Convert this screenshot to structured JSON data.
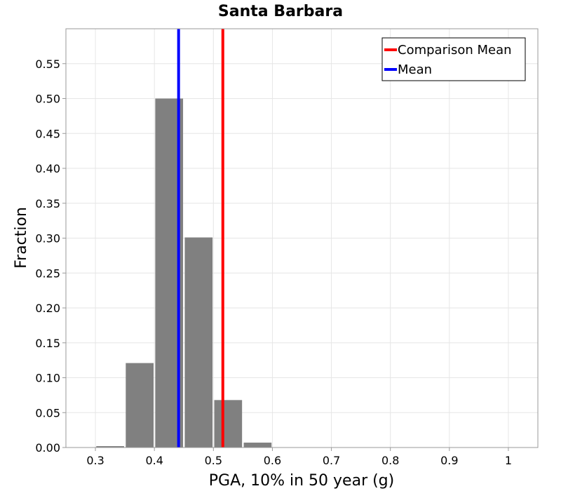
{
  "chart_data": {
    "type": "bar",
    "title": "Santa Barbara",
    "xlabel": "PGA, 10% in 50 year (g)",
    "ylabel": "Fraction",
    "xlim": [
      0.25,
      1.05
    ],
    "ylim": [
      0,
      0.6
    ],
    "xticks": [
      0.3,
      0.4,
      0.5,
      0.6,
      0.7,
      0.8,
      0.9,
      1.0
    ],
    "xtick_labels": [
      "0.3",
      "0.4",
      "0.5",
      "0.6",
      "0.7",
      "0.8",
      "0.9",
      "1"
    ],
    "yticks": [
      0.0,
      0.05,
      0.1,
      0.15,
      0.2,
      0.25,
      0.3,
      0.35,
      0.4,
      0.45,
      0.5,
      0.55
    ],
    "ytick_labels": [
      "0.00",
      "0.05",
      "0.10",
      "0.15",
      "0.20",
      "0.25",
      "0.30",
      "0.35",
      "0.40",
      "0.45",
      "0.50",
      "0.55"
    ],
    "grid": true,
    "bin_width": 0.05,
    "bars": [
      {
        "x": 0.325,
        "value": 0.002
      },
      {
        "x": 0.375,
        "value": 0.121
      },
      {
        "x": 0.425,
        "value": 0.5
      },
      {
        "x": 0.475,
        "value": 0.301
      },
      {
        "x": 0.525,
        "value": 0.068
      },
      {
        "x": 0.575,
        "value": 0.007
      }
    ],
    "bar_color": "#808080",
    "vlines": [
      {
        "name": "Comparison Mean",
        "x": 0.516,
        "color": "#ff0000"
      },
      {
        "name": "Mean",
        "x": 0.441,
        "color": "#0000ff"
      }
    ],
    "legend": {
      "placement": "top-right",
      "entries": [
        {
          "label": "Comparison Mean",
          "color": "#ff0000"
        },
        {
          "label": "Mean",
          "color": "#0000ff"
        }
      ]
    }
  }
}
